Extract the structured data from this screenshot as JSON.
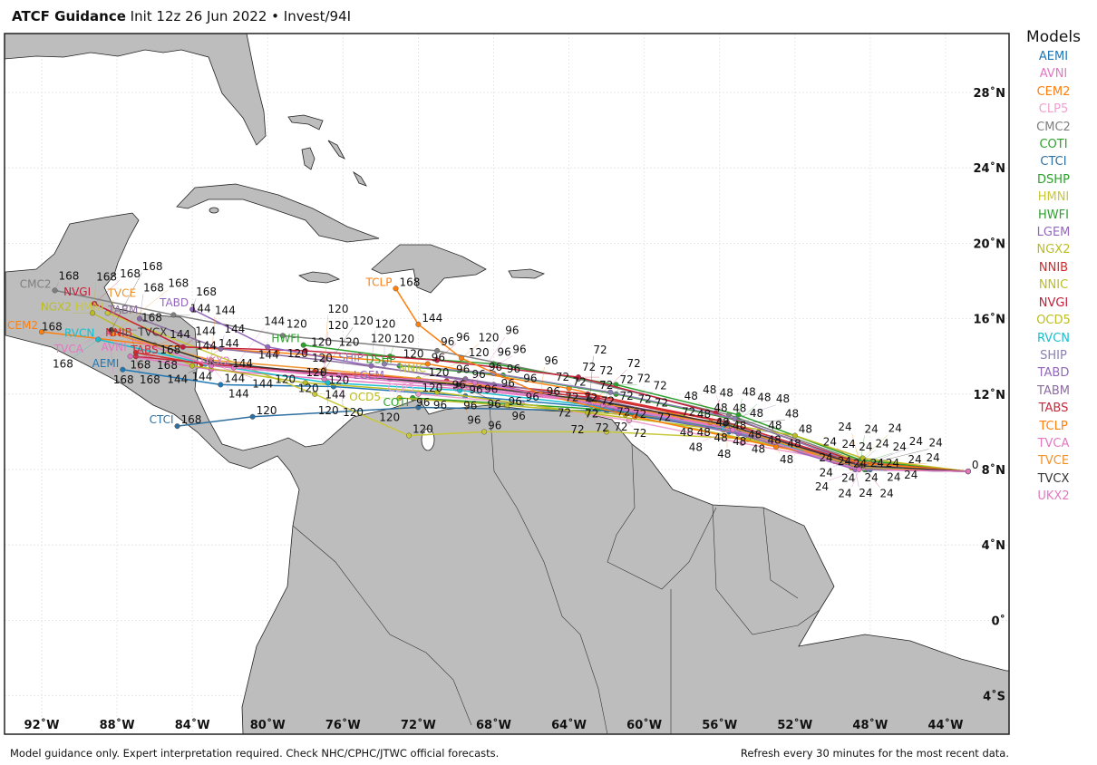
{
  "header": {
    "title_bold": "ATCF Guidance",
    "title_rest": "Init 12z 26 Jun 2022 • Invest/94I"
  },
  "legend": {
    "title": "Models",
    "items": [
      {
        "name": "AEMI",
        "color": "#1f77b4"
      },
      {
        "name": "AVNI",
        "color": "#e377c2"
      },
      {
        "name": "CEM2",
        "color": "#ff7f0e"
      },
      {
        "name": "CLP5",
        "color": "#f0a0d0"
      },
      {
        "name": "CMC2",
        "color": "#7f7f7f"
      },
      {
        "name": "COTI",
        "color": "#2ca02c"
      },
      {
        "name": "CTCI",
        "color": "#2f6f9f"
      },
      {
        "name": "DSHP",
        "color": "#2ca02c"
      },
      {
        "name": "HMNI",
        "color": "#c8c83a"
      },
      {
        "name": "HWFI",
        "color": "#2ca02c"
      },
      {
        "name": "LGEM",
        "color": "#9467bd"
      },
      {
        "name": "NGX2",
        "color": "#bcbd22"
      },
      {
        "name": "NNIB",
        "color": "#d62728"
      },
      {
        "name": "NNIC",
        "color": "#bcbd22"
      },
      {
        "name": "NVGI",
        "color": "#c41e3a"
      },
      {
        "name": "OCD5",
        "color": "#bcbd22"
      },
      {
        "name": "RVCN",
        "color": "#17becf"
      },
      {
        "name": "SHIP",
        "color": "#8c7fb3"
      },
      {
        "name": "TABD",
        "color": "#9467bd"
      },
      {
        "name": "TABM",
        "color": "#8c6d9f"
      },
      {
        "name": "TABS",
        "color": "#c8283a"
      },
      {
        "name": "TCLP",
        "color": "#ff7f0e"
      },
      {
        "name": "TVCA",
        "color": "#e377c2"
      },
      {
        "name": "TVCE",
        "color": "#f0922b"
      },
      {
        "name": "TVCX",
        "color": "#333333"
      },
      {
        "name": "UKX2",
        "color": "#e377c2"
      }
    ]
  },
  "axes": {
    "lon_ticks": [
      {
        "value": -92,
        "label": "92˚W"
      },
      {
        "value": -88,
        "label": "88˚W"
      },
      {
        "value": -84,
        "label": "84˚W"
      },
      {
        "value": -80,
        "label": "80˚W"
      },
      {
        "value": -76,
        "label": "76˚W"
      },
      {
        "value": -72,
        "label": "72˚W"
      },
      {
        "value": -68,
        "label": "68˚W"
      },
      {
        "value": -64,
        "label": "64˚W"
      },
      {
        "value": -60,
        "label": "60˚W"
      },
      {
        "value": -56,
        "label": "56˚W"
      },
      {
        "value": -52,
        "label": "52˚W"
      },
      {
        "value": -48,
        "label": "48˚W"
      },
      {
        "value": -44,
        "label": "44˚W"
      }
    ],
    "lat_ticks": [
      {
        "value": 28,
        "label": "28˚N"
      },
      {
        "value": 24,
        "label": "24˚N"
      },
      {
        "value": 20,
        "label": "20˚N"
      },
      {
        "value": 16,
        "label": "16˚N"
      },
      {
        "value": 12,
        "label": "12˚N"
      },
      {
        "value": 8,
        "label": "8˚N"
      },
      {
        "value": 4,
        "label": "4˚N"
      },
      {
        "value": 0,
        "label": "0˚"
      },
      {
        "value": -4,
        "label": "4˚S"
      }
    ]
  },
  "init_point": {
    "lon": -42.8,
    "lat": 7.9,
    "label": "0"
  },
  "tracks": [
    {
      "model": "AEMI",
      "points": [
        [
          24,
          -48.2,
          8.0
        ],
        [
          48,
          -55.5,
          10.0
        ],
        [
          72,
          -62.5,
          11.3
        ],
        [
          96,
          -69.5,
          11.9
        ],
        [
          120,
          -76.5,
          12.4
        ],
        [
          144,
          -82.5,
          12.5
        ],
        [
          168,
          -87.7,
          13.3
        ]
      ]
    },
    {
      "model": "AVNI",
      "points": [
        [
          24,
          -48.5,
          8.2
        ],
        [
          48,
          -56,
          10.3
        ],
        [
          72,
          -63,
          11.6
        ],
        [
          96,
          -70,
          12.3
        ],
        [
          120,
          -77,
          12.8
        ],
        [
          144,
          -83,
          13.3
        ],
        [
          168,
          -87.3,
          14.0
        ]
      ]
    },
    {
      "model": "CEM2",
      "points": [
        [
          24,
          -49,
          8.1
        ],
        [
          48,
          -56.5,
          10.5
        ],
        [
          72,
          -64,
          12.3
        ],
        [
          96,
          -71.5,
          13.6
        ],
        [
          120,
          -79.5,
          14.2
        ],
        [
          144,
          -86,
          14.6
        ],
        [
          168,
          -92,
          15.3
        ]
      ]
    },
    {
      "model": "CLP5",
      "points": [
        [
          24,
          -48.8,
          8.3
        ],
        [
          48,
          -54.8,
          9.4
        ],
        [
          72,
          -60.8,
          10.6
        ],
        [
          96,
          -66.5,
          11.5
        ],
        [
          120,
          -72,
          12.0
        ]
      ]
    },
    {
      "model": "CMC2",
      "points": [
        [
          24,
          -48.5,
          8.4
        ],
        [
          48,
          -55.5,
          10.9
        ],
        [
          72,
          -63.5,
          12.8
        ],
        [
          96,
          -71,
          14.3
        ],
        [
          120,
          -79.2,
          15.1
        ],
        [
          144,
          -85,
          16.2
        ],
        [
          168,
          -91.3,
          17.5
        ]
      ]
    },
    {
      "model": "COTI",
      "points": [
        [
          24,
          -48.3,
          8.0
        ],
        [
          48,
          -55.8,
          10.2
        ],
        [
          72,
          -62.5,
          11.2
        ],
        [
          96,
          -72.3,
          11.8
        ]
      ]
    },
    {
      "model": "CTCI",
      "points": [
        [
          24,
          -48,
          8.0
        ],
        [
          48,
          -55,
          10.0
        ],
        [
          72,
          -62,
          11.1
        ],
        [
          96,
          -72,
          11.3
        ],
        [
          120,
          -80.8,
          10.8
        ],
        [
          168,
          -84.8,
          10.3
        ]
      ]
    },
    {
      "model": "DSHP",
      "points": [
        [
          24,
          -48.6,
          8.3
        ],
        [
          48,
          -55,
          10.6
        ],
        [
          72,
          -61.5,
          12.0
        ],
        [
          96,
          -67.5,
          13.0
        ],
        [
          120,
          -73,
          13.5
        ]
      ]
    },
    {
      "model": "HMNI",
      "points": [
        [
          24,
          -48.3,
          8.5
        ],
        [
          48,
          -54,
          9.6
        ],
        [
          72,
          -62,
          10.0
        ],
        [
          96,
          -68.5,
          10.0
        ],
        [
          120,
          -72.5,
          9.8
        ],
        [
          144,
          -77.5,
          12.0
        ],
        [
          168,
          -88.5,
          16.3
        ]
      ]
    },
    {
      "model": "HWFI",
      "points": [
        [
          24,
          -48.5,
          8.5
        ],
        [
          48,
          -55,
          10.9
        ],
        [
          72,
          -61.5,
          12.5
        ],
        [
          96,
          -68,
          13.6
        ],
        [
          120,
          -73.5,
          14.0
        ],
        [
          126,
          -78.1,
          14.6
        ]
      ]
    },
    {
      "model": "LGEM",
      "points": [
        [
          24,
          -48.5,
          8.1
        ],
        [
          48,
          -55.5,
          10.3
        ],
        [
          72,
          -62,
          11.5
        ],
        [
          96,
          -68,
          12.3
        ],
        [
          120,
          -73.5,
          12.8
        ]
      ]
    },
    {
      "model": "NGX2",
      "points": [
        [
          24,
          -48.8,
          8.2
        ],
        [
          48,
          -55.8,
          10.1
        ],
        [
          72,
          -63,
          11.0
        ],
        [
          96,
          -71,
          12.1
        ],
        [
          120,
          -78,
          12.6
        ],
        [
          144,
          -84,
          13.5
        ],
        [
          168,
          -89.3,
          16.3
        ]
      ]
    },
    {
      "model": "NNIB",
      "points": [
        [
          24,
          -48.6,
          8.3
        ],
        [
          48,
          -56,
          10.6
        ],
        [
          72,
          -63,
          12.0
        ],
        [
          96,
          -70.5,
          12.7
        ],
        [
          120,
          -77.5,
          13.2
        ],
        [
          144,
          -83.5,
          13.6
        ],
        [
          168,
          -87,
          14.2
        ]
      ]
    },
    {
      "model": "NNIC",
      "points": [
        [
          24,
          -48.4,
          8.6
        ],
        [
          48,
          -52,
          9.8
        ],
        [
          72,
          -58,
          10.8
        ],
        [
          96,
          -64,
          11.8
        ],
        [
          120,
          -72,
          12.8
        ]
      ]
    },
    {
      "model": "NVGI",
      "points": [
        [
          24,
          -48.7,
          8.4
        ],
        [
          48,
          -56.2,
          11.0
        ],
        [
          72,
          -63.5,
          12.9
        ],
        [
          96,
          -71,
          13.8
        ],
        [
          120,
          -78,
          14.3
        ],
        [
          144,
          -84.5,
          14.5
        ],
        [
          168,
          -89.2,
          16.8
        ]
      ]
    },
    {
      "model": "OCD5",
      "points": [
        [
          24,
          -48.5,
          8.2
        ],
        [
          48,
          -54.5,
          9.6
        ],
        [
          72,
          -61,
          10.9
        ],
        [
          96,
          -67.3,
          11.4
        ],
        [
          120,
          -73,
          11.8
        ]
      ]
    },
    {
      "model": "RVCN",
      "points": [
        [
          24,
          -48.4,
          8.1
        ],
        [
          48,
          -55.8,
          10.2
        ],
        [
          72,
          -62.8,
          11.4
        ],
        [
          96,
          -69.8,
          12.2
        ],
        [
          120,
          -76.8,
          12.6
        ],
        [
          144,
          -83.3,
          13.6
        ],
        [
          168,
          -89,
          14.9
        ]
      ]
    },
    {
      "model": "SHIP",
      "points": [
        [
          24,
          -48.7,
          8.3
        ],
        [
          48,
          -55.2,
          10.7
        ],
        [
          72,
          -61.8,
          12.1
        ],
        [
          96,
          -68,
          13.1
        ],
        [
          120,
          -73.8,
          13.6
        ]
      ]
    },
    {
      "model": "TABD",
      "points": [
        [
          24,
          -48.8,
          8.0
        ],
        [
          48,
          -55,
          9.9
        ],
        [
          72,
          -61.5,
          11.2
        ],
        [
          96,
          -68,
          12.5
        ],
        [
          120,
          -74.5,
          13.5
        ],
        [
          144,
          -80,
          14.5
        ],
        [
          168,
          -84,
          16.5
        ]
      ]
    },
    {
      "model": "TABM",
      "points": [
        [
          24,
          -48.6,
          8.1
        ],
        [
          48,
          -55.5,
          10.3
        ],
        [
          72,
          -62.5,
          11.7
        ],
        [
          96,
          -69.5,
          12.8
        ],
        [
          120,
          -77,
          13.8
        ],
        [
          144,
          -82.5,
          14.4
        ],
        [
          168,
          -86.8,
          16.0
        ]
      ]
    },
    {
      "model": "TABS",
      "points": [
        [
          24,
          -48.4,
          8.2
        ],
        [
          48,
          -55.6,
          10.5
        ],
        [
          72,
          -62.5,
          11.8
        ],
        [
          96,
          -69.8,
          12.5
        ],
        [
          120,
          -77,
          13.1
        ],
        [
          144,
          -83,
          13.6
        ],
        [
          168,
          -87,
          14.0
        ]
      ]
    },
    {
      "model": "TCLP",
      "points": [
        [
          24,
          -48,
          8.3
        ],
        [
          48,
          -53,
          9.2
        ],
        [
          72,
          -60.5,
          10.8
        ],
        [
          96,
          -65.5,
          12.0
        ],
        [
          120,
          -69.7,
          13.9
        ],
        [
          144,
          -72,
          15.7
        ],
        [
          168,
          -73.2,
          17.6
        ]
      ]
    },
    {
      "model": "TVCA",
      "points": [
        [
          24,
          -48.5,
          8.2
        ],
        [
          48,
          -55.7,
          10.4
        ],
        [
          72,
          -62.8,
          11.6
        ],
        [
          96,
          -69.8,
          12.4
        ],
        [
          120,
          -77,
          13.0
        ],
        [
          144,
          -83,
          13.5
        ],
        [
          168,
          -88.4,
          15.3
        ]
      ]
    },
    {
      "model": "TVCE",
      "points": [
        [
          24,
          -48.5,
          8.1
        ],
        [
          48,
          -55.6,
          10.3
        ],
        [
          72,
          -62.7,
          11.6
        ],
        [
          96,
          -69.6,
          12.6
        ],
        [
          120,
          -77,
          13.3
        ],
        [
          144,
          -83,
          13.8
        ],
        [
          168,
          -88.2,
          15.2
        ]
      ]
    },
    {
      "model": "TVCX",
      "points": [
        [
          24,
          -48.5,
          8.2
        ],
        [
          48,
          -55.7,
          10.4
        ],
        [
          72,
          -62.9,
          11.7
        ],
        [
          96,
          -69.9,
          12.5
        ],
        [
          120,
          -77.1,
          13.1
        ],
        [
          144,
          -83,
          13.7
        ],
        [
          168,
          -88.3,
          15.4
        ]
      ]
    },
    {
      "model": "UKX2",
      "points": [
        [
          24,
          -48.6,
          8.0
        ],
        [
          48,
          -55.3,
          10.1
        ],
        [
          72,
          -62.2,
          11.4
        ],
        [
          96,
          -69,
          12.6
        ],
        [
          120,
          -76.2,
          13.0
        ],
        [
          144,
          -81.8,
          13.4
        ]
      ]
    }
  ],
  "footer": {
    "disclaimer": "Model guidance only. Expert interpretation required. Check NHC/CPHC/JTWC official forecasts.",
    "refresh": "Refresh every 30 minutes for the most recent data."
  }
}
